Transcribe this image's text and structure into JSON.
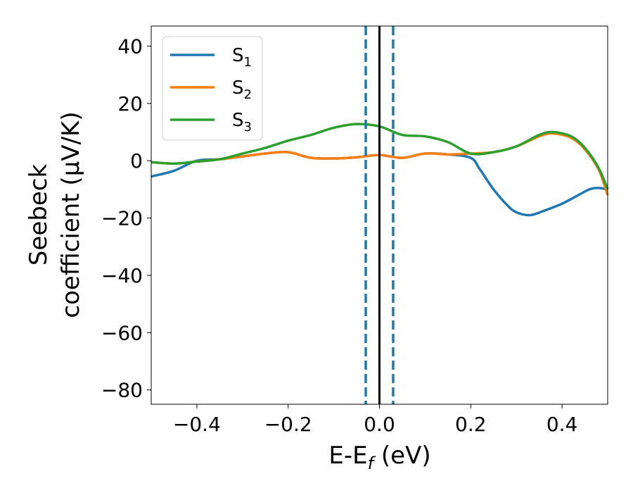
{
  "chart_data": {
    "type": "line",
    "xlabel_main": "E-E",
    "xlabel_sub": "f",
    "xlabel_unit": " (eV)",
    "ylabel_line1": "Seebeck",
    "ylabel_line2": "coefficient  (μV/K)",
    "xlim": [
      -0.5,
      0.5
    ],
    "ylim": [
      -85,
      47
    ],
    "xticks": [
      -0.4,
      -0.2,
      0.0,
      0.2,
      0.4
    ],
    "xtick_labels": [
      "−0.4",
      "−0.2",
      "0.0",
      "0.2",
      "0.4"
    ],
    "yticks": [
      40,
      20,
      0,
      -20,
      -40,
      -60,
      -80
    ],
    "ytick_labels": [
      "40",
      "20",
      "0",
      "−20",
      "−40",
      "−60",
      "−80"
    ],
    "grid": false,
    "legend_position": "upper-left",
    "vertical_lines": [
      {
        "x": -0.03,
        "style": "dashed",
        "color": "#1f77b4"
      },
      {
        "x": 0.03,
        "style": "dashed",
        "color": "#1f77b4"
      },
      {
        "x": 0.0,
        "style": "solid",
        "color": "#000000"
      }
    ],
    "series": [
      {
        "name": "S",
        "sub": "1",
        "color": "#1f77b4",
        "x": [
          -0.5,
          -0.45,
          -0.4,
          -0.35,
          -0.3,
          -0.25,
          -0.2,
          -0.15,
          -0.1,
          -0.05,
          0.0,
          0.05,
          0.1,
          0.15,
          0.2,
          0.22,
          0.25,
          0.28,
          0.3,
          0.33,
          0.36,
          0.4,
          0.43,
          0.46,
          0.48,
          0.5
        ],
        "y": [
          -5.5,
          -3.5,
          0,
          0.5,
          1.5,
          2.5,
          3.0,
          1.0,
          0.8,
          1.2,
          2.0,
          1.0,
          2.5,
          2.2,
          1.0,
          -3.0,
          -10.0,
          -15.5,
          -18.0,
          -19.0,
          -17.5,
          -15.0,
          -12.5,
          -10.0,
          -9.5,
          -10.0
        ]
      },
      {
        "name": "S",
        "sub": "2",
        "color": "#ff7f0e",
        "x": [
          -0.5,
          -0.45,
          -0.4,
          -0.35,
          -0.3,
          -0.25,
          -0.2,
          -0.15,
          -0.1,
          -0.05,
          0.0,
          0.05,
          0.1,
          0.15,
          0.2,
          0.25,
          0.3,
          0.35,
          0.38,
          0.42,
          0.45,
          0.48,
          0.5
        ],
        "y": [
          -0.5,
          -1.0,
          -0.3,
          0.5,
          1.5,
          2.5,
          3.0,
          1.0,
          0.8,
          1.2,
          2.0,
          1.0,
          2.5,
          2.2,
          2.5,
          3.0,
          5.0,
          8.5,
          9.5,
          8.0,
          4.0,
          -3.0,
          -12.0
        ]
      },
      {
        "name": "S",
        "sub": "3",
        "color": "#2ca02c",
        "x": [
          -0.5,
          -0.45,
          -0.4,
          -0.35,
          -0.3,
          -0.25,
          -0.2,
          -0.15,
          -0.1,
          -0.05,
          0.0,
          0.05,
          0.1,
          0.15,
          0.2,
          0.25,
          0.3,
          0.35,
          0.38,
          0.42,
          0.45,
          0.48,
          0.5
        ],
        "y": [
          -0.5,
          -1.0,
          -0.3,
          0.5,
          2.5,
          4.5,
          7.0,
          9.0,
          11.5,
          12.8,
          12.0,
          9.0,
          8.5,
          6.5,
          2.5,
          3.0,
          5.0,
          9.0,
          10.0,
          8.5,
          4.5,
          -2.5,
          -10.0
        ]
      }
    ]
  }
}
